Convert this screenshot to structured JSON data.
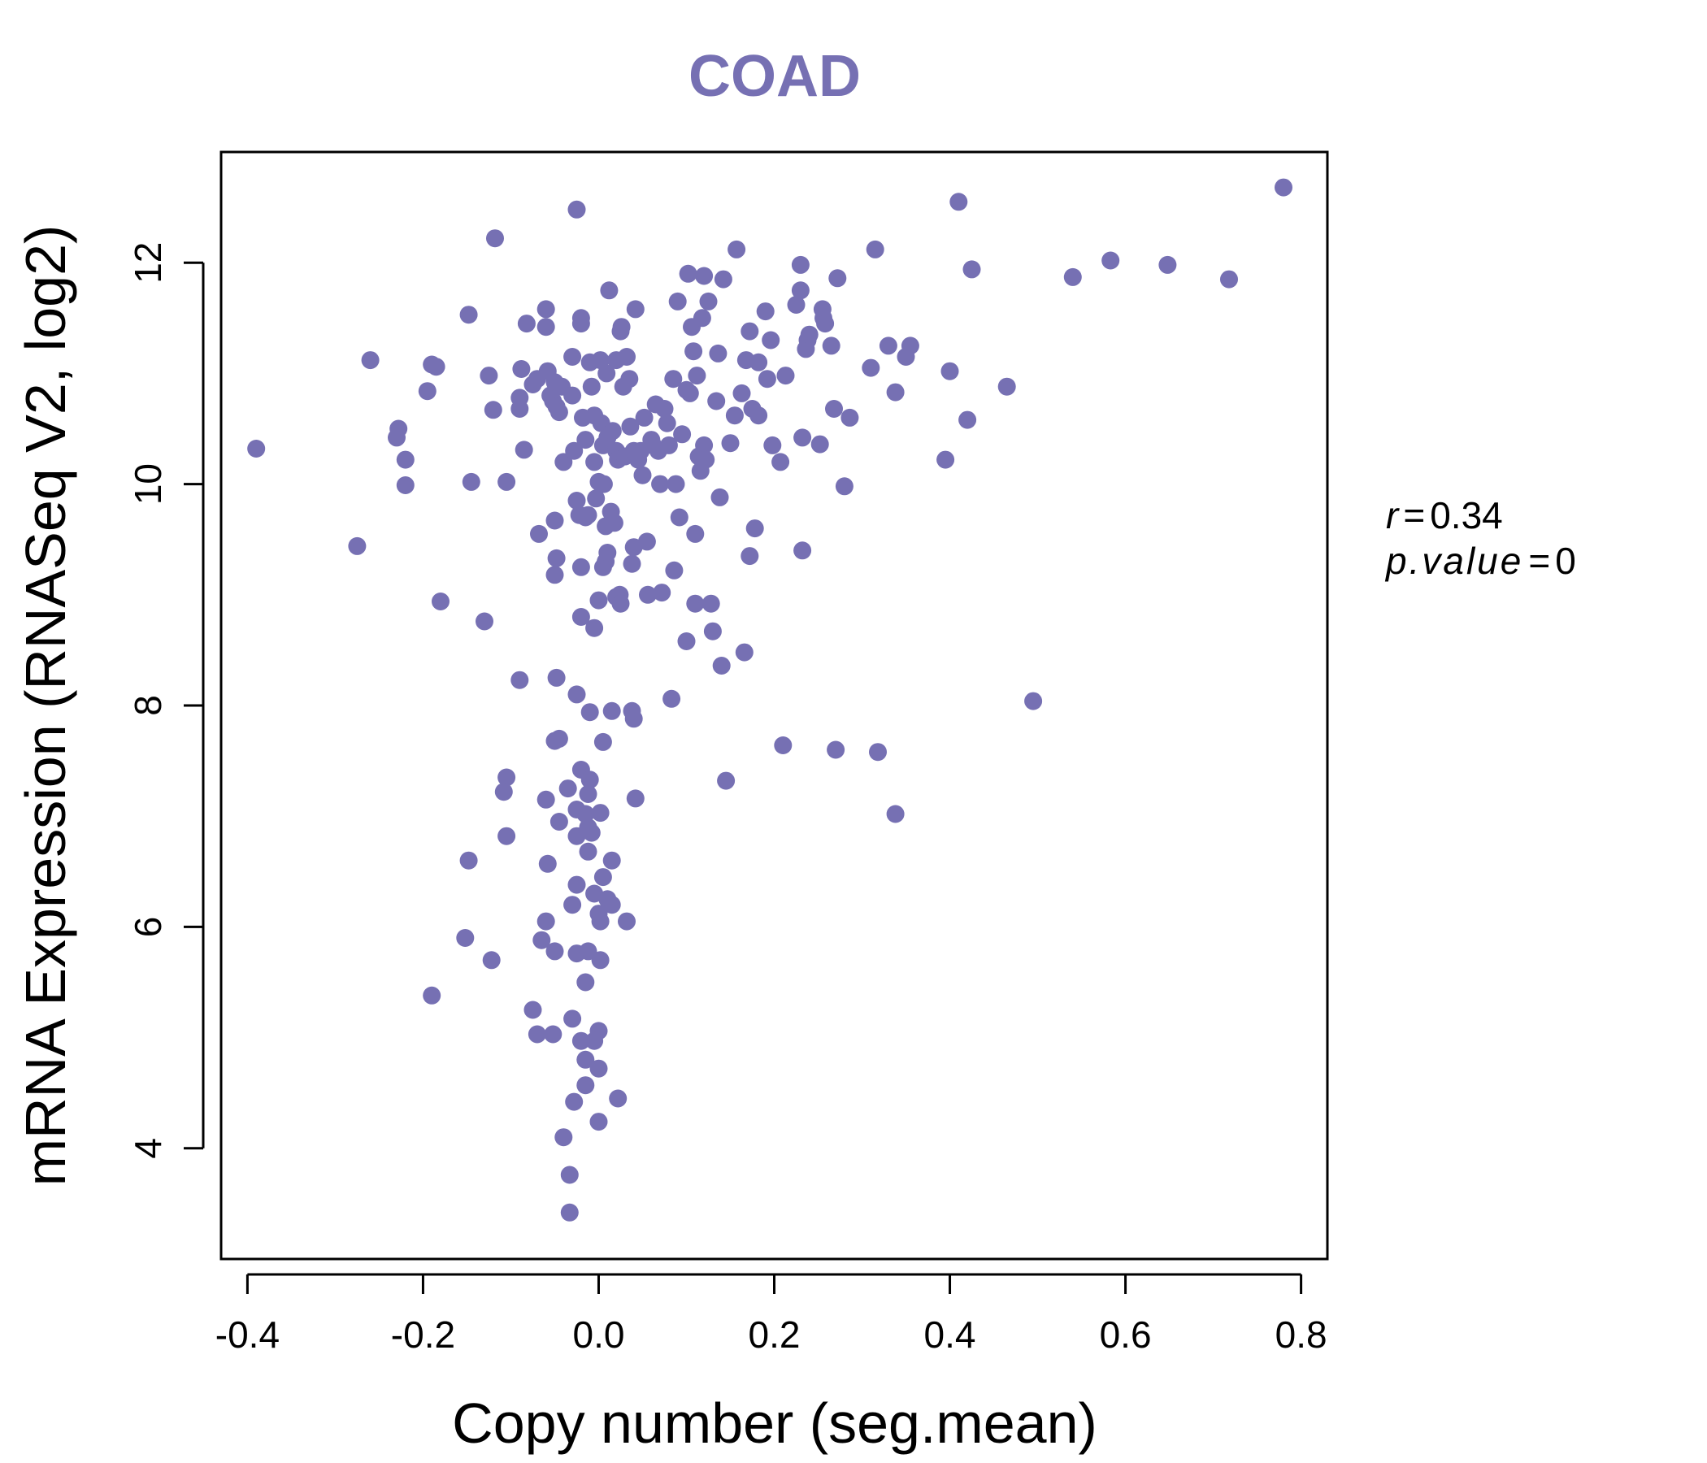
{
  "colors": {
    "accent": "#7670B3",
    "axis": "#000000",
    "background": "#ffffff"
  },
  "chart_data": {
    "type": "scatter",
    "title": "COAD",
    "xlabel": "Copy number (seg.mean)",
    "ylabel": "mRNA Expression (RNASeq V2, log2)",
    "xlim": [
      -0.43,
      0.83
    ],
    "ylim": [
      3.0,
      13.0
    ],
    "xticks": [
      -0.4,
      -0.2,
      0.0,
      0.2,
      0.4,
      0.6,
      0.8
    ],
    "xtick_labels": [
      "-0.4",
      "-0.2",
      "0.0",
      "0.2",
      "0.4",
      "0.6",
      "0.8"
    ],
    "yticks": [
      4,
      6,
      8,
      10,
      12
    ],
    "ytick_labels": [
      "4",
      "6",
      "8",
      "10",
      "12"
    ],
    "stats": {
      "r_label": "r",
      "r_value": "0.34",
      "p_label": "p.value",
      "p_value": "0"
    },
    "points": [
      [
        -0.39,
        10.32
      ],
      [
        -0.275,
        9.44
      ],
      [
        -0.26,
        11.12
      ],
      [
        -0.23,
        10.42
      ],
      [
        -0.228,
        10.5
      ],
      [
        -0.22,
        10.22
      ],
      [
        -0.22,
        9.99
      ],
      [
        -0.195,
        10.84
      ],
      [
        -0.19,
        11.08
      ],
      [
        -0.185,
        11.06
      ],
      [
        -0.18,
        8.94
      ],
      [
        -0.19,
        5.38
      ],
      [
        -0.148,
        11.53
      ],
      [
        -0.145,
        10.02
      ],
      [
        -0.13,
        8.76
      ],
      [
        -0.125,
        10.98
      ],
      [
        -0.12,
        10.67
      ],
      [
        -0.118,
        12.22
      ],
      [
        -0.105,
        10.02
      ],
      [
        -0.09,
        10.78
      ],
      [
        -0.09,
        10.68
      ],
      [
        -0.088,
        11.04
      ],
      [
        -0.085,
        10.31
      ],
      [
        -0.082,
        11.45
      ],
      [
        -0.075,
        10.9
      ],
      [
        -0.07,
        10.95
      ],
      [
        -0.068,
        9.55
      ],
      [
        -0.06,
        11.58
      ],
      [
        -0.06,
        11.42
      ],
      [
        -0.058,
        11.02
      ],
      [
        -0.055,
        10.8
      ],
      [
        -0.052,
        10.75
      ],
      [
        -0.05,
        10.92
      ],
      [
        -0.048,
        10.7
      ],
      [
        -0.045,
        10.65
      ],
      [
        -0.042,
        10.88
      ],
      [
        -0.04,
        10.2
      ],
      [
        -0.05,
        9.67
      ],
      [
        -0.048,
        9.33
      ],
      [
        -0.05,
        9.18
      ],
      [
        -0.03,
        10.8
      ],
      [
        -0.03,
        11.15
      ],
      [
        -0.028,
        10.3
      ],
      [
        -0.025,
        9.85
      ],
      [
        -0.022,
        9.72
      ],
      [
        -0.02,
        11.5
      ],
      [
        -0.02,
        11.45
      ],
      [
        -0.018,
        10.6
      ],
      [
        -0.015,
        10.4
      ],
      [
        -0.012,
        9.72
      ],
      [
        -0.01,
        11.1
      ],
      [
        -0.008,
        10.88
      ],
      [
        -0.005,
        10.62
      ],
      [
        -0.005,
        10.2
      ],
      [
        -0.003,
        9.87
      ],
      [
        0.0,
        10.02
      ],
      [
        0.002,
        11.12
      ],
      [
        0.003,
        10.55
      ],
      [
        0.005,
        10.35
      ],
      [
        0.006,
        10.0
      ],
      [
        0.008,
        9.62
      ],
      [
        0.008,
        9.3
      ],
      [
        0.009,
        11.0
      ],
      [
        0.01,
        10.42
      ],
      [
        0.012,
        11.75
      ],
      [
        0.014,
        9.75
      ],
      [
        0.016,
        10.48
      ],
      [
        0.018,
        9.65
      ],
      [
        0.02,
        11.12
      ],
      [
        0.02,
        10.3
      ],
      [
        0.022,
        10.22
      ],
      [
        0.024,
        9.0
      ],
      [
        0.025,
        11.38
      ],
      [
        0.026,
        11.42
      ],
      [
        0.028,
        10.88
      ],
      [
        0.03,
        10.25
      ],
      [
        0.032,
        11.15
      ],
      [
        0.035,
        10.95
      ],
      [
        0.036,
        10.52
      ],
      [
        0.038,
        9.28
      ],
      [
        0.04,
        9.43
      ],
      [
        0.04,
        10.3
      ],
      [
        0.042,
        11.58
      ],
      [
        0.045,
        10.22
      ],
      [
        0.048,
        10.3
      ],
      [
        0.05,
        10.08
      ],
      [
        0.052,
        10.6
      ],
      [
        0.055,
        9.48
      ],
      [
        0.056,
        9.0
      ],
      [
        0.06,
        10.4
      ],
      [
        0.062,
        10.35
      ],
      [
        0.065,
        10.72
      ],
      [
        0.068,
        10.3
      ],
      [
        0.07,
        10.0
      ],
      [
        0.072,
        9.02
      ],
      [
        0.075,
        10.68
      ],
      [
        0.078,
        10.55
      ],
      [
        0.08,
        10.35
      ],
      [
        0.083,
        8.06
      ],
      [
        0.085,
        10.95
      ],
      [
        0.086,
        9.22
      ],
      [
        0.088,
        10.0
      ],
      [
        0.09,
        11.65
      ],
      [
        0.092,
        9.7
      ],
      [
        0.095,
        10.45
      ],
      [
        0.1,
        8.58
      ],
      [
        0.1,
        10.85
      ],
      [
        0.102,
        11.9
      ],
      [
        0.104,
        10.82
      ],
      [
        0.106,
        11.42
      ],
      [
        0.108,
        11.2
      ],
      [
        0.11,
        9.55
      ],
      [
        0.11,
        8.92
      ],
      [
        0.112,
        10.98
      ],
      [
        0.114,
        10.25
      ],
      [
        0.116,
        10.12
      ],
      [
        0.118,
        11.5
      ],
      [
        0.12,
        10.35
      ],
      [
        0.12,
        11.88
      ],
      [
        0.122,
        10.22
      ],
      [
        0.125,
        11.65
      ],
      [
        0.128,
        8.92
      ],
      [
        0.13,
        8.67
      ],
      [
        0.134,
        10.75
      ],
      [
        0.136,
        11.18
      ],
      [
        0.138,
        9.88
      ],
      [
        0.14,
        8.36
      ],
      [
        0.142,
        11.85
      ],
      [
        0.145,
        7.32
      ],
      [
        0.15,
        10.37
      ],
      [
        0.155,
        10.62
      ],
      [
        0.157,
        12.12
      ],
      [
        0.163,
        10.82
      ],
      [
        0.166,
        8.48
      ],
      [
        0.168,
        11.12
      ],
      [
        0.172,
        11.38
      ],
      [
        0.172,
        9.35
      ],
      [
        0.175,
        10.68
      ],
      [
        0.178,
        9.6
      ],
      [
        0.182,
        11.1
      ],
      [
        0.182,
        10.62
      ],
      [
        0.19,
        11.56
      ],
      [
        0.192,
        10.95
      ],
      [
        0.196,
        11.3
      ],
      [
        0.198,
        10.35
      ],
      [
        0.207,
        10.2
      ],
      [
        0.21,
        7.64
      ],
      [
        0.213,
        10.98
      ],
      [
        0.225,
        11.62
      ],
      [
        0.23,
        11.75
      ],
      [
        0.23,
        11.98
      ],
      [
        0.232,
        9.4
      ],
      [
        0.232,
        10.42
      ],
      [
        0.236,
        11.22
      ],
      [
        0.238,
        11.3
      ],
      [
        0.24,
        11.35
      ],
      [
        0.252,
        10.36
      ],
      [
        0.255,
        11.58
      ],
      [
        0.256,
        11.5
      ],
      [
        0.258,
        11.45
      ],
      [
        0.265,
        11.25
      ],
      [
        0.268,
        10.68
      ],
      [
        0.272,
        11.86
      ],
      [
        0.27,
        7.6
      ],
      [
        0.28,
        9.98
      ],
      [
        0.286,
        10.6
      ],
      [
        0.31,
        11.05
      ],
      [
        0.315,
        12.12
      ],
      [
        0.318,
        7.58
      ],
      [
        0.33,
        11.25
      ],
      [
        0.338,
        10.83
      ],
      [
        0.338,
        7.02
      ],
      [
        0.35,
        11.15
      ],
      [
        0.355,
        11.25
      ],
      [
        0.395,
        10.22
      ],
      [
        0.4,
        11.02
      ],
      [
        0.41,
        12.55
      ],
      [
        0.42,
        10.58
      ],
      [
        0.425,
        11.94
      ],
      [
        0.465,
        10.88
      ],
      [
        0.495,
        8.04
      ],
      [
        0.54,
        11.87
      ],
      [
        0.583,
        12.02
      ],
      [
        0.648,
        11.98
      ],
      [
        0.718,
        11.85
      ],
      [
        0.78,
        12.68
      ],
      [
        -0.025,
        12.48
      ],
      [
        0.005,
        9.25
      ],
      [
        0.01,
        9.38
      ],
      [
        -0.02,
        9.25
      ],
      [
        -0.015,
        9.7
      ],
      [
        0.02,
        8.98
      ],
      [
        0.025,
        8.92
      ],
      [
        0.0,
        8.95
      ],
      [
        -0.02,
        8.8
      ],
      [
        -0.005,
        8.7
      ],
      [
        -0.09,
        8.23
      ],
      [
        -0.048,
        8.25
      ],
      [
        -0.025,
        8.1
      ],
      [
        -0.01,
        7.94
      ],
      [
        0.015,
        7.95
      ],
      [
        0.038,
        7.95
      ],
      [
        0.04,
        7.88
      ],
      [
        0.005,
        7.67
      ],
      [
        -0.05,
        7.68
      ],
      [
        -0.045,
        7.7
      ],
      [
        -0.02,
        7.42
      ],
      [
        -0.105,
        7.35
      ],
      [
        -0.108,
        7.22
      ],
      [
        -0.06,
        7.15
      ],
      [
        -0.035,
        7.25
      ],
      [
        -0.01,
        7.33
      ],
      [
        -0.012,
        7.2
      ],
      [
        0.042,
        7.16
      ],
      [
        -0.025,
        7.06
      ],
      [
        -0.015,
        7.02
      ],
      [
        0.002,
        7.03
      ],
      [
        -0.045,
        6.95
      ],
      [
        -0.012,
        6.9
      ],
      [
        -0.025,
        6.82
      ],
      [
        -0.008,
        6.85
      ],
      [
        -0.012,
        6.68
      ],
      [
        0.015,
        6.6
      ],
      [
        -0.105,
        6.82
      ],
      [
        -0.148,
        6.6
      ],
      [
        -0.058,
        6.57
      ],
      [
        0.005,
        6.45
      ],
      [
        -0.025,
        6.38
      ],
      [
        -0.005,
        6.3
      ],
      [
        0.01,
        6.25
      ],
      [
        -0.03,
        6.2
      ],
      [
        0.015,
        6.2
      ],
      [
        0.0,
        6.12
      ],
      [
        0.002,
        6.05
      ],
      [
        0.032,
        6.05
      ],
      [
        -0.06,
        6.05
      ],
      [
        -0.152,
        5.9
      ],
      [
        -0.065,
        5.88
      ],
      [
        -0.05,
        5.78
      ],
      [
        -0.025,
        5.76
      ],
      [
        -0.012,
        5.78
      ],
      [
        0.002,
        5.7
      ],
      [
        -0.122,
        5.7
      ],
      [
        -0.015,
        5.5
      ],
      [
        -0.075,
        5.25
      ],
      [
        -0.03,
        5.17
      ],
      [
        0.0,
        5.06
      ],
      [
        -0.07,
        5.03
      ],
      [
        -0.052,
        5.03
      ],
      [
        -0.02,
        4.97
      ],
      [
        -0.005,
        4.97
      ],
      [
        -0.015,
        4.8
      ],
      [
        0.0,
        4.72
      ],
      [
        -0.015,
        4.57
      ],
      [
        0.022,
        4.45
      ],
      [
        -0.028,
        4.42
      ],
      [
        0.0,
        4.24
      ],
      [
        -0.04,
        4.1
      ],
      [
        -0.033,
        3.76
      ],
      [
        -0.033,
        3.42
      ]
    ]
  }
}
